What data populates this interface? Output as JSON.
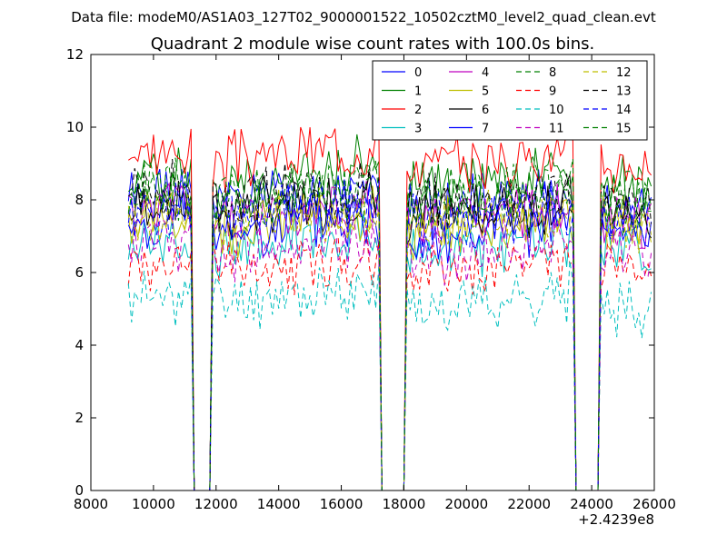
{
  "chart_data": {
    "type": "line",
    "suptitle": "Data file: modeM0/AS1A03_127T02_9000001522_10502cztM0_level2_quad_clean.evt",
    "title": "Quadrant 2 module wise count rates with 100.0s bins.",
    "xlabel": "",
    "ylabel": "",
    "x_offset_label": "+2.4239e8",
    "xlim": [
      8000,
      26000
    ],
    "ylim": [
      0,
      12
    ],
    "xticks": [
      8000,
      10000,
      12000,
      14000,
      16000,
      18000,
      20000,
      22000,
      24000,
      26000
    ],
    "xtick_labels": [
      "8000",
      "10000",
      "12000",
      "14000",
      "16000",
      "18000",
      "20000",
      "22000",
      "24000",
      "26000"
    ],
    "yticks": [
      0,
      2,
      4,
      6,
      8,
      10,
      12
    ],
    "ytick_labels": [
      "0",
      "2",
      "4",
      "6",
      "8",
      "10",
      "12"
    ],
    "grid": false,
    "legend_position": "top-right",
    "legend_columns": 4,
    "x_start": 9200,
    "x_step": 100,
    "x_end": 25900,
    "gaps": [
      [
        11300,
        11800
      ],
      [
        17300,
        18000
      ],
      [
        23500,
        24200
      ]
    ],
    "gap_value": 0,
    "segment_profiles": [
      [
        9200,
        11200,
        1.0,
        1.02
      ],
      [
        11800,
        17300,
        0.98,
        1.04
      ],
      [
        18000,
        23500,
        0.96,
        1.02
      ],
      [
        24200,
        25900,
        0.98,
        0.96
      ]
    ],
    "series": [
      {
        "name": "0",
        "level": 8.0,
        "color": "#0000ff",
        "dash": "solid",
        "seed": 1
      },
      {
        "name": "1",
        "level": 8.6,
        "color": "#008000",
        "dash": "solid",
        "seed": 2
      },
      {
        "name": "2",
        "level": 9.2,
        "color": "#ff0000",
        "dash": "solid",
        "seed": 3
      },
      {
        "name": "3",
        "level": 6.8,
        "color": "#00bfbf",
        "dash": "solid",
        "seed": 4
      },
      {
        "name": "4",
        "level": 7.6,
        "color": "#bf00bf",
        "dash": "solid",
        "seed": 5
      },
      {
        "name": "5",
        "level": 7.4,
        "color": "#bfbf00",
        "dash": "solid",
        "seed": 6
      },
      {
        "name": "6",
        "level": 7.8,
        "color": "#000000",
        "dash": "solid",
        "seed": 7
      },
      {
        "name": "7",
        "level": 7.2,
        "color": "#0000ff",
        "dash": "solid",
        "seed": 8
      },
      {
        "name": "8",
        "level": 7.9,
        "color": "#008000",
        "dash": "dashed",
        "seed": 9
      },
      {
        "name": "9",
        "level": 6.2,
        "color": "#ff0000",
        "dash": "dashed",
        "seed": 10
      },
      {
        "name": "10",
        "level": 5.3,
        "color": "#00bfbf",
        "dash": "dashed",
        "seed": 11
      },
      {
        "name": "11",
        "level": 6.7,
        "color": "#bf00bf",
        "dash": "dashed",
        "seed": 12
      },
      {
        "name": "12",
        "level": 7.5,
        "color": "#bfbf00",
        "dash": "dashed",
        "seed": 13
      },
      {
        "name": "13",
        "level": 8.1,
        "color": "#000000",
        "dash": "dashed",
        "seed": 14
      },
      {
        "name": "14",
        "level": 7.7,
        "color": "#0000ff",
        "dash": "dashed",
        "seed": 15
      },
      {
        "name": "15",
        "level": 8.3,
        "color": "#008000",
        "dash": "dashed",
        "seed": 16
      }
    ]
  }
}
